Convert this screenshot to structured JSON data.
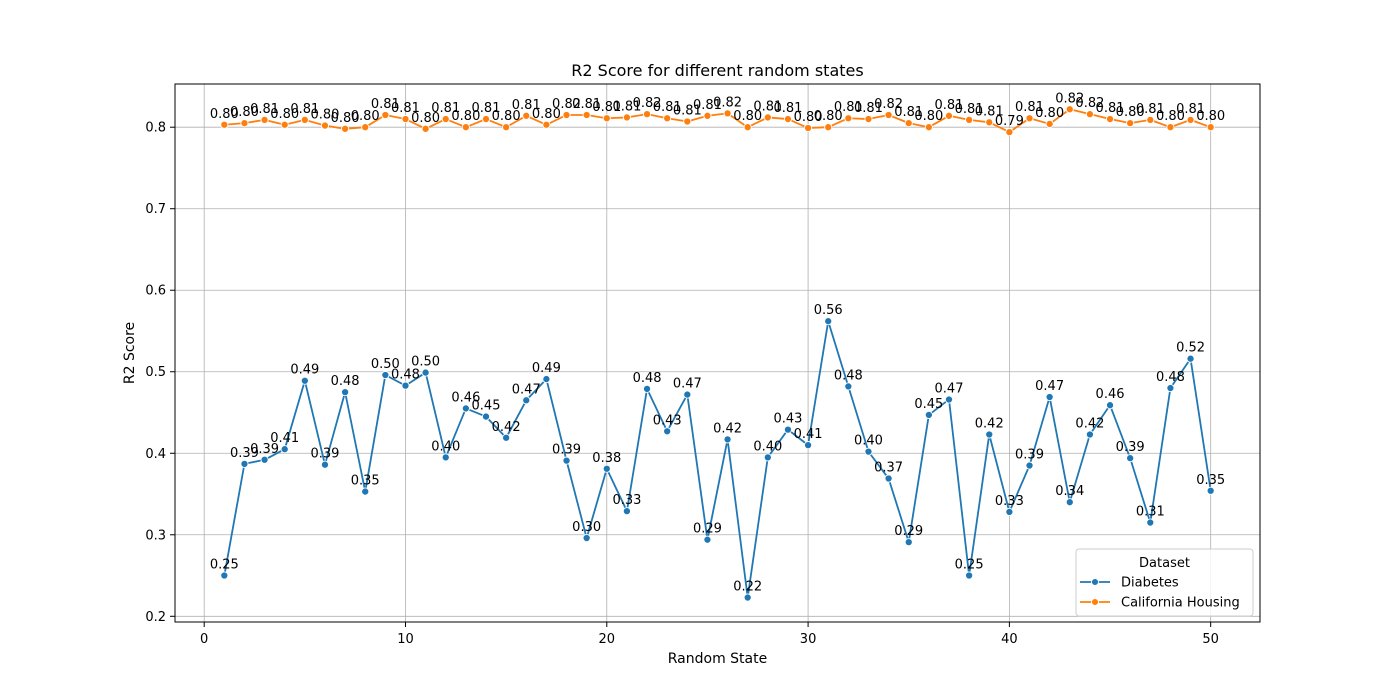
{
  "chart_data": {
    "type": "line",
    "title": "R2 Score for different random states",
    "xlabel": "Random State",
    "ylabel": "R2 Score",
    "xlim": [
      -1.45,
      52.45
    ],
    "ylim": [
      0.193,
      0.853
    ],
    "xticks": [
      0,
      10,
      20,
      30,
      40,
      50
    ],
    "yticks": [
      0.2,
      0.3,
      0.4,
      0.5,
      0.6,
      0.7,
      0.8
    ],
    "grid": true,
    "legend": {
      "title": "Dataset",
      "placement": "lower right"
    },
    "x": [
      1,
      2,
      3,
      4,
      5,
      6,
      7,
      8,
      9,
      10,
      11,
      12,
      13,
      14,
      15,
      16,
      17,
      18,
      19,
      20,
      21,
      22,
      23,
      24,
      25,
      26,
      27,
      28,
      29,
      30,
      31,
      32,
      33,
      34,
      35,
      36,
      37,
      38,
      39,
      40,
      41,
      42,
      43,
      44,
      45,
      46,
      47,
      48,
      49,
      50
    ],
    "series": [
      {
        "name": "Diabetes",
        "color": "#1f77b4",
        "values": [
          0.25,
          0.387,
          0.392,
          0.405,
          0.489,
          0.386,
          0.475,
          0.353,
          0.496,
          0.483,
          0.499,
          0.395,
          0.455,
          0.445,
          0.419,
          0.465,
          0.491,
          0.391,
          0.296,
          0.381,
          0.329,
          0.479,
          0.427,
          0.472,
          0.294,
          0.417,
          0.223,
          0.395,
          0.429,
          0.41,
          0.562,
          0.482,
          0.402,
          0.369,
          0.291,
          0.447,
          0.466,
          0.25,
          0.423,
          0.328,
          0.385,
          0.469,
          0.34,
          0.423,
          0.459,
          0.394,
          0.315,
          0.48,
          0.516,
          0.354
        ],
        "labels": [
          "0.25",
          "0.39",
          "0.39",
          "0.41",
          "0.49",
          "0.39",
          "0.48",
          "0.35",
          "0.50",
          "0.48",
          "0.50",
          "0.40",
          "0.46",
          "0.45",
          "0.42",
          "0.47",
          "0.49",
          "0.39",
          "0.30",
          "0.38",
          "0.33",
          "0.48",
          "0.43",
          "0.47",
          "0.29",
          "0.42",
          "0.22",
          "0.40",
          "0.43",
          "0.41",
          "0.56",
          "0.48",
          "0.40",
          "0.37",
          "0.29",
          "0.45",
          "0.47",
          "0.25",
          "0.42",
          "0.33",
          "0.39",
          "0.47",
          "0.34",
          "0.42",
          "0.46",
          "0.39",
          "0.31",
          "0.48",
          "0.52",
          "0.35"
        ]
      },
      {
        "name": "California Housing",
        "color": "#ff7f0e",
        "values": [
          0.803,
          0.805,
          0.809,
          0.803,
          0.809,
          0.802,
          0.798,
          0.8,
          0.815,
          0.81,
          0.798,
          0.81,
          0.8,
          0.81,
          0.8,
          0.814,
          0.803,
          0.815,
          0.815,
          0.811,
          0.812,
          0.816,
          0.811,
          0.807,
          0.814,
          0.817,
          0.8,
          0.812,
          0.81,
          0.799,
          0.8,
          0.811,
          0.81,
          0.815,
          0.805,
          0.8,
          0.814,
          0.809,
          0.806,
          0.794,
          0.811,
          0.804,
          0.822,
          0.816,
          0.81,
          0.805,
          0.809,
          0.8,
          0.809,
          0.8
        ],
        "labels": [
          "0.80",
          "0.80",
          "0.81",
          "0.80",
          "0.81",
          "0.80",
          "0.80",
          "0.80",
          "0.81",
          "0.81",
          "0.80",
          "0.81",
          "0.80",
          "0.81",
          "0.80",
          "0.81",
          "0.80",
          "0.82",
          "0.81",
          "0.81",
          "0.81",
          "0.82",
          "0.81",
          "0.81",
          "0.81",
          "0.82",
          "0.80",
          "0.81",
          "0.81",
          "0.80",
          "0.80",
          "0.81",
          "0.81",
          "0.82",
          "0.81",
          "0.80",
          "0.81",
          "0.81",
          "0.81",
          "0.79",
          "0.81",
          "0.80",
          "0.82",
          "0.82",
          "0.81",
          "0.80",
          "0.81",
          "0.80",
          "0.81",
          "0.80"
        ]
      }
    ]
  }
}
